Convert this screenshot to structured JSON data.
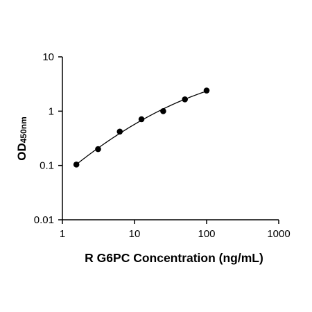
{
  "chart_data": {
    "type": "scatter",
    "xlabel": "R G6PC Concentration (ng/mL)",
    "ylabel": {
      "main": "OD",
      "subscript": "450nm"
    },
    "x_scale": "log",
    "y_scale": "log",
    "xlim": [
      1,
      1000
    ],
    "ylim": [
      0.01,
      10
    ],
    "x_ticks": [
      1,
      10,
      100,
      1000
    ],
    "x_tick_labels": [
      "1",
      "10",
      "100",
      "1000"
    ],
    "y_ticks": [
      0.01,
      0.1,
      1,
      10
    ],
    "y_tick_labels": [
      "0.01",
      "0.1",
      "1",
      "10"
    ],
    "grid": false,
    "series": [
      {
        "points": [
          {
            "x": 1.5625,
            "y": 0.104
          },
          {
            "x": 3.125,
            "y": 0.2
          },
          {
            "x": 6.25,
            "y": 0.42
          },
          {
            "x": 12.5,
            "y": 0.71
          },
          {
            "x": 25,
            "y": 1.0
          },
          {
            "x": 50,
            "y": 1.65
          },
          {
            "x": 100,
            "y": 2.4
          }
        ],
        "fit_curve": true
      }
    ]
  }
}
